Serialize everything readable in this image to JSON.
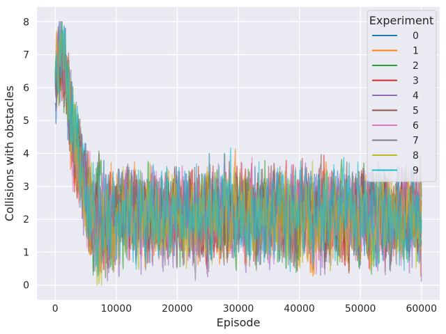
{
  "chart_data": {
    "type": "line",
    "xlabel": "Episode",
    "ylabel": "Collisions with obstacles",
    "xlim": [
      -3000,
      63000
    ],
    "ylim": [
      -0.45,
      8.45
    ],
    "x_ticks": [
      0,
      10000,
      20000,
      30000,
      40000,
      50000,
      60000
    ],
    "y_ticks": [
      0,
      1,
      2,
      3,
      4,
      5,
      6,
      7,
      8
    ],
    "grid": true,
    "legend": {
      "title": "Experiment",
      "position": "top-right"
    },
    "series": [
      {
        "name": "0",
        "color": "#1f77b4",
        "x": [
          0,
          1000,
          2000,
          3000,
          4000,
          5000,
          6000,
          7000,
          8000,
          9000,
          10000,
          12500,
          15000,
          17500,
          20000,
          22500,
          25000,
          27500,
          30000,
          32500,
          35000,
          37500,
          40000,
          42500,
          45000,
          47500,
          50000,
          52500,
          55000,
          57500,
          60000
        ],
        "y": [
          6.2,
          7.5,
          5.8,
          4.6,
          3.6,
          2.7,
          2.2,
          1.9,
          1.8,
          1.8,
          1.9,
          2.1,
          2.0,
          2.2,
          1.9,
          2.0,
          2.1,
          1.9,
          2.2,
          2.0,
          2.1,
          1.9,
          2.2,
          2.0,
          2.1,
          2.3,
          2.0,
          2.2,
          2.1,
          2.4,
          1.9
        ]
      },
      {
        "name": "1",
        "color": "#ff7f0e",
        "x": [
          0,
          1000,
          2000,
          3000,
          4000,
          5000,
          6000,
          7000,
          8000,
          9000,
          10000,
          12500,
          15000,
          17500,
          20000,
          22500,
          25000,
          27500,
          30000,
          32500,
          35000,
          37500,
          40000,
          42500,
          45000,
          47500,
          50000,
          52500,
          55000,
          57500,
          60000
        ],
        "y": [
          6.4,
          7.2,
          5.6,
          4.4,
          3.4,
          2.6,
          2.0,
          1.7,
          1.7,
          1.9,
          2.0,
          2.2,
          2.1,
          1.9,
          2.1,
          2.2,
          1.9,
          2.0,
          2.1,
          2.2,
          1.9,
          2.1,
          2.0,
          1.8,
          2.1,
          2.0,
          2.2,
          2.0,
          1.9,
          2.1,
          1.5
        ]
      },
      {
        "name": "2",
        "color": "#2ca02c",
        "x": [
          0,
          1000,
          2000,
          3000,
          4000,
          5000,
          6000,
          7000,
          8000,
          9000,
          10000,
          12500,
          15000,
          17500,
          20000,
          22500,
          25000,
          27500,
          30000,
          32500,
          35000,
          37500,
          40000,
          42500,
          45000,
          47500,
          50000,
          52500,
          55000,
          57500,
          60000
        ],
        "y": [
          6.3,
          7.4,
          5.9,
          4.7,
          3.7,
          2.8,
          2.3,
          1.9,
          1.7,
          1.8,
          2.0,
          2.1,
          2.3,
          2.0,
          2.1,
          1.9,
          2.0,
          2.2,
          2.1,
          1.9,
          2.0,
          2.1,
          1.9,
          2.2,
          1.9,
          2.1,
          2.0,
          1.8,
          2.1,
          1.9,
          2.0
        ]
      },
      {
        "name": "3",
        "color": "#d62728",
        "x": [
          0,
          1000,
          2000,
          3000,
          4000,
          5000,
          6000,
          7000,
          8000,
          9000,
          10000,
          12500,
          15000,
          17500,
          20000,
          22500,
          25000,
          27500,
          30000,
          32500,
          35000,
          37500,
          40000,
          42500,
          45000,
          47500,
          50000,
          52500,
          55000,
          57500,
          60000
        ],
        "y": [
          6.1,
          7.0,
          5.7,
          4.5,
          3.5,
          2.7,
          2.1,
          1.8,
          1.8,
          1.9,
          2.1,
          2.0,
          2.2,
          2.1,
          2.0,
          2.2,
          2.1,
          2.0,
          2.3,
          2.2,
          2.4,
          2.1,
          2.0,
          2.2,
          2.1,
          1.9,
          2.0,
          2.2,
          2.1,
          1.9,
          2.2
        ]
      },
      {
        "name": "4",
        "color": "#9467bd",
        "x": [
          0,
          1000,
          2000,
          3000,
          4000,
          5000,
          6000,
          7000,
          8000,
          9000,
          10000,
          12500,
          15000,
          17500,
          20000,
          22500,
          25000,
          27500,
          30000,
          32500,
          35000,
          37500,
          40000,
          42500,
          45000,
          47500,
          50000,
          52500,
          55000,
          57500,
          60000
        ],
        "y": [
          6.5,
          7.3,
          5.8,
          4.6,
          3.8,
          2.9,
          2.2,
          1.8,
          1.7,
          1.8,
          1.9,
          2.1,
          2.0,
          2.1,
          2.2,
          2.0,
          1.9,
          2.1,
          2.0,
          2.1,
          2.0,
          2.2,
          2.1,
          2.0,
          1.9,
          2.1,
          2.2,
          2.0,
          2.1,
          2.0,
          1.8
        ]
      },
      {
        "name": "5",
        "color": "#8c564b",
        "x": [
          0,
          1000,
          2000,
          3000,
          4000,
          5000,
          6000,
          7000,
          8000,
          9000,
          10000,
          12500,
          15000,
          17500,
          20000,
          22500,
          25000,
          27500,
          30000,
          32500,
          35000,
          37500,
          40000,
          42500,
          45000,
          47500,
          50000,
          52500,
          55000,
          57500,
          60000
        ],
        "y": [
          6.2,
          7.1,
          5.6,
          4.4,
          3.6,
          2.8,
          2.2,
          1.9,
          1.8,
          1.9,
          2.0,
          2.2,
          2.1,
          2.3,
          2.0,
          2.1,
          2.2,
          1.9,
          2.1,
          2.0,
          2.2,
          2.0,
          1.9,
          2.1,
          2.0,
          2.2,
          2.1,
          2.3,
          2.0,
          2.2,
          2.4
        ]
      },
      {
        "name": "6",
        "color": "#e377c2",
        "x": [
          0,
          1000,
          2000,
          3000,
          4000,
          5000,
          6000,
          7000,
          8000,
          9000,
          10000,
          12500,
          15000,
          17500,
          20000,
          22500,
          25000,
          27500,
          30000,
          32500,
          35000,
          37500,
          40000,
          42500,
          45000,
          47500,
          50000,
          52500,
          55000,
          57500,
          60000
        ],
        "y": [
          6.3,
          7.2,
          5.7,
          4.3,
          3.3,
          2.5,
          2.0,
          1.6,
          1.6,
          1.8,
          1.9,
          2.0,
          2.1,
          1.9,
          2.0,
          2.1,
          2.0,
          2.2,
          2.0,
          2.1,
          1.9,
          2.0,
          2.1,
          2.0,
          2.2,
          2.0,
          2.1,
          1.9,
          2.0,
          2.1,
          2.0
        ]
      },
      {
        "name": "7",
        "color": "#7f7f7f",
        "x": [
          0,
          1000,
          2000,
          3000,
          4000,
          5000,
          6000,
          7000,
          8000,
          9000,
          10000,
          12500,
          15000,
          17500,
          20000,
          22500,
          25000,
          27500,
          30000,
          32500,
          35000,
          37500,
          40000,
          42500,
          45000,
          47500,
          50000,
          52500,
          55000,
          57500,
          60000
        ],
        "y": [
          6.4,
          7.6,
          6.0,
          4.8,
          3.9,
          3.0,
          2.3,
          1.9,
          1.8,
          1.9,
          2.0,
          2.1,
          2.0,
          2.1,
          2.2,
          1.9,
          2.0,
          2.1,
          2.0,
          2.2,
          2.1,
          2.0,
          2.1,
          1.9,
          2.0,
          2.1,
          2.0,
          2.2,
          2.0,
          2.1,
          2.0
        ]
      },
      {
        "name": "8",
        "color": "#bcbd22",
        "x": [
          0,
          1000,
          2000,
          3000,
          4000,
          5000,
          6000,
          7000,
          8000,
          9000,
          10000,
          12500,
          15000,
          17500,
          20000,
          22500,
          25000,
          27500,
          30000,
          32500,
          35000,
          37500,
          40000,
          42500,
          45000,
          47500,
          50000,
          52500,
          55000,
          57500,
          60000
        ],
        "y": [
          6.2,
          7.3,
          5.8,
          4.5,
          3.5,
          2.6,
          2.0,
          1.6,
          1.6,
          1.7,
          1.9,
          2.1,
          2.2,
          2.0,
          2.1,
          2.0,
          2.2,
          2.1,
          2.3,
          2.0,
          2.1,
          2.2,
          2.0,
          2.1,
          2.0,
          1.9,
          2.1,
          2.0,
          2.2,
          2.0,
          1.9
        ]
      },
      {
        "name": "9",
        "color": "#17becf",
        "x": [
          0,
          1000,
          2000,
          3000,
          4000,
          5000,
          6000,
          7000,
          8000,
          9000,
          10000,
          12500,
          15000,
          17500,
          20000,
          22500,
          25000,
          27500,
          30000,
          32500,
          35000,
          37500,
          40000,
          42500,
          45000,
          47500,
          50000,
          52500,
          55000,
          57500,
          60000
        ],
        "y": [
          6.0,
          7.5,
          5.9,
          4.6,
          3.6,
          2.7,
          2.1,
          1.8,
          1.7,
          1.8,
          2.0,
          2.2,
          2.1,
          2.2,
          2.0,
          2.3,
          2.1,
          2.2,
          2.0,
          2.1,
          2.2,
          2.0,
          2.2,
          2.1,
          2.0,
          2.2,
          2.1,
          2.0,
          2.2,
          2.1,
          2.0
        ]
      }
    ]
  }
}
